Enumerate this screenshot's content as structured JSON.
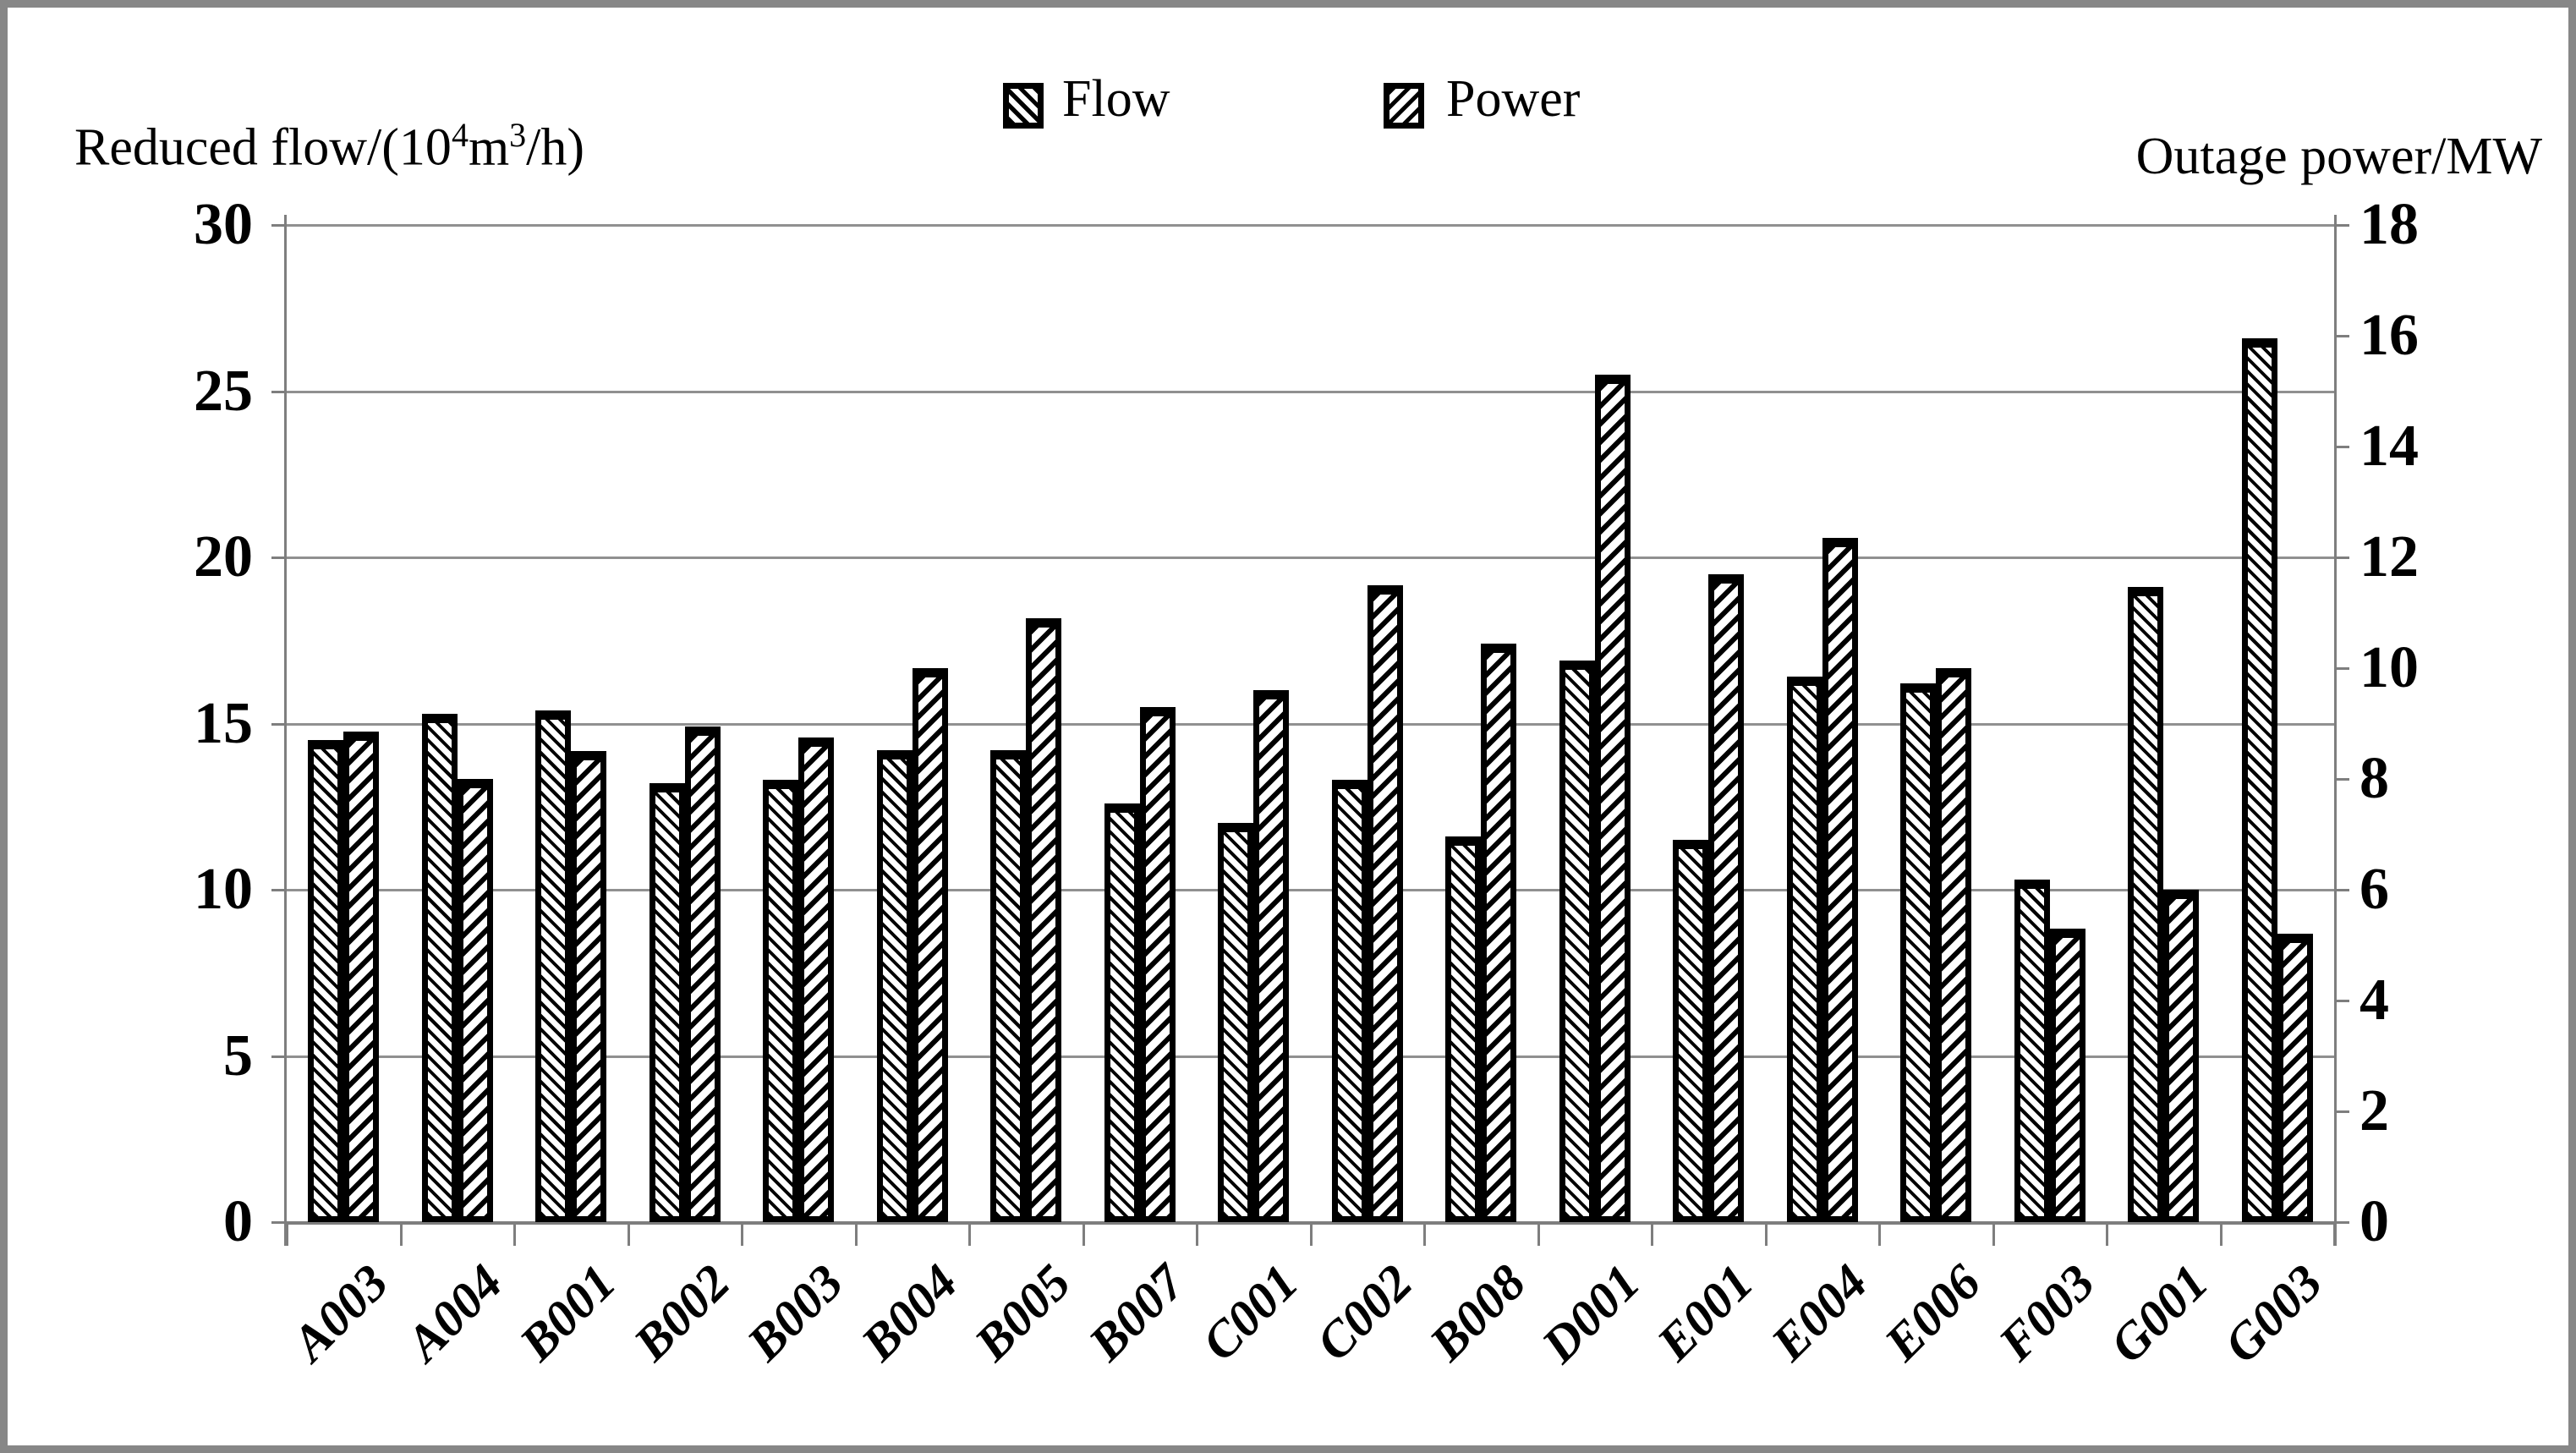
{
  "titles": {
    "left": {
      "pre": "Reduced flow/(10",
      "sup1": "4",
      "mid": "m",
      "sup2": "3",
      "post": "/h)"
    },
    "left_plain": "Reduced flow/(10⁴m³/h)",
    "right": "Outage power/MW"
  },
  "legend": [
    {
      "label": "Flow",
      "hatch": "backslash-diagonal",
      "icon": "hatched-square-icon"
    },
    {
      "label": "Power",
      "hatch": "forwardslash-diagonal",
      "icon": "hatched-square-icon"
    }
  ],
  "left_axis_tick_labels": [
    "0",
    "5",
    "10",
    "15",
    "20",
    "25",
    "30"
  ],
  "right_axis_tick_labels": [
    "0",
    "2",
    "4",
    "6",
    "8",
    "10",
    "12",
    "14",
    "16",
    "18"
  ],
  "colors": {
    "bar_fill": "#ffffff",
    "hatch": "#000000",
    "gridline": "#909090",
    "axis": "#7e7e7e",
    "frame": "#878787",
    "text": "#000000"
  },
  "chart_data": {
    "type": "bar",
    "title": "",
    "categories": [
      "A003",
      "A004",
      "B001",
      "B002",
      "B003",
      "B004",
      "B005",
      "B007",
      "C001",
      "C002",
      "B008",
      "D001",
      "E001",
      "E004",
      "E006",
      "F003",
      "G001",
      "G003"
    ],
    "series": [
      {
        "name": "Flow",
        "axis": "left",
        "unit": "10^4 m^3/h",
        "values": [
          14.5,
          15.3,
          15.4,
          13.2,
          13.3,
          14.2,
          14.2,
          12.6,
          12.0,
          13.3,
          11.6,
          16.9,
          11.5,
          16.4,
          16.2,
          10.3,
          19.1,
          26.6
        ]
      },
      {
        "name": "Power",
        "axis": "right",
        "unit": "MW",
        "values": [
          8.85,
          8.0,
          8.5,
          8.95,
          8.75,
          10.0,
          10.9,
          9.3,
          9.6,
          11.5,
          10.45,
          15.3,
          11.7,
          12.35,
          10.0,
          5.3,
          6.0,
          5.2
        ]
      }
    ],
    "left_axis": {
      "label": "Reduced flow/(10^4 m^3/h)",
      "min": 0,
      "max": 30,
      "tick_step": 5
    },
    "right_axis": {
      "label": "Outage power/MW",
      "min": 0,
      "max": 18,
      "tick_step": 2
    },
    "grid": "horizontal",
    "legend_position": "top-center",
    "xlabel": "",
    "ylabel": "Reduced flow/(10^4 m^3/h)"
  }
}
